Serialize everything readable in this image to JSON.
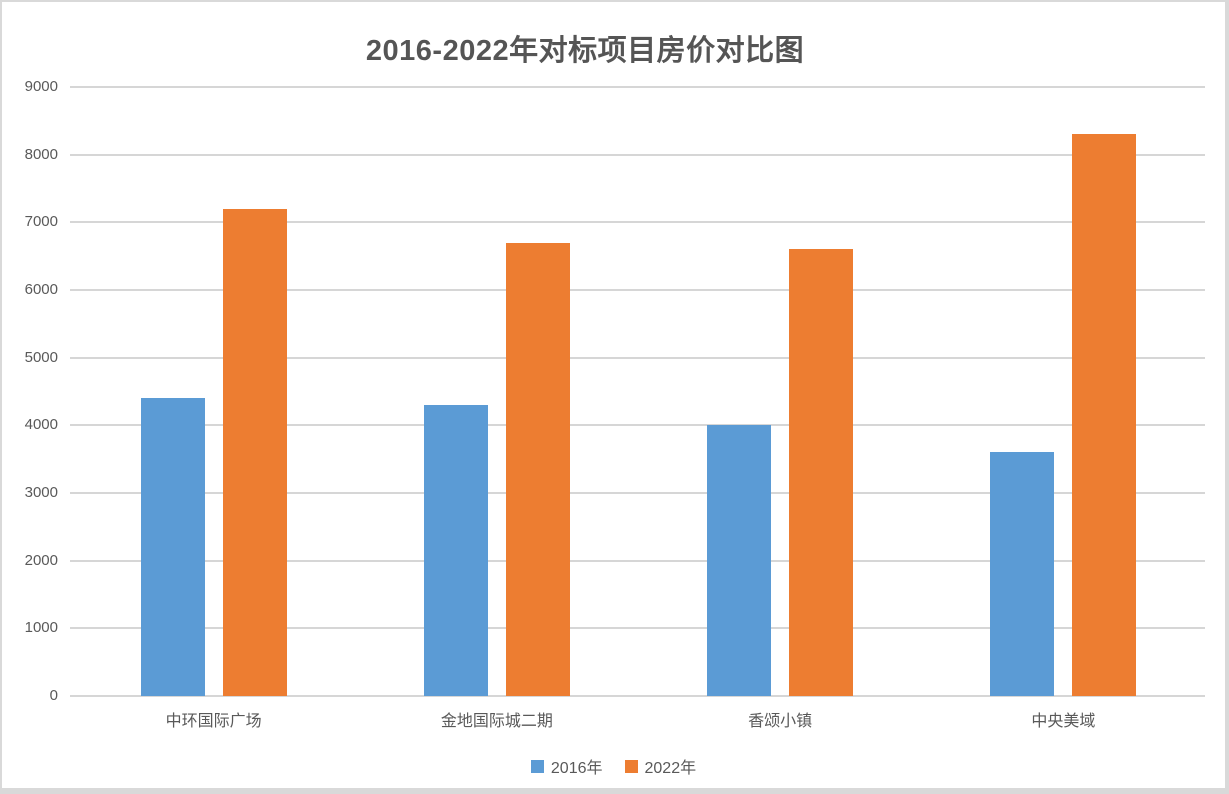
{
  "chart_data": {
    "type": "bar",
    "title": "2016-2022年对标项目房价对比图",
    "categories": [
      "中环国际广场",
      "金地国际城二期",
      "香颂小镇",
      "中央美域"
    ],
    "series": [
      {
        "name": "2016年",
        "color": "#5B9BD5",
        "values": [
          4400,
          4300,
          4000,
          3600
        ]
      },
      {
        "name": "2022年",
        "color": "#ED7D31",
        "values": [
          7200,
          6700,
          6600,
          8300
        ]
      }
    ],
    "xlabel": "",
    "ylabel": "",
    "ylim": [
      0,
      9000
    ],
    "yticks": [
      0,
      1000,
      2000,
      3000,
      4000,
      5000,
      6000,
      7000,
      8000,
      9000
    ],
    "grid": true,
    "legend_position": "bottom",
    "colors": {
      "series_2016": "#5B9BD5",
      "series_2022": "#ED7D31",
      "gridline": "#D6D6D6",
      "title_text": "#555555",
      "axis_text": "#595959",
      "page_border": "#D9D9D9",
      "background": "#FFFFFF"
    }
  }
}
